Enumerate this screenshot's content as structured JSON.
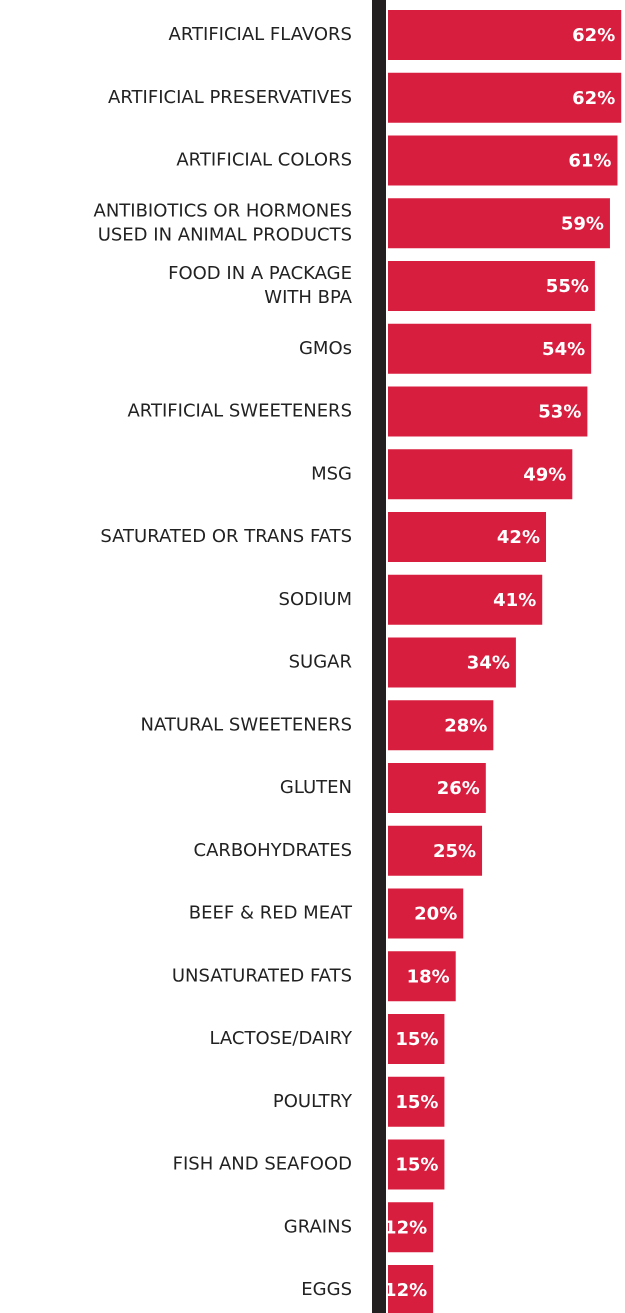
{
  "chart_data": {
    "type": "hbar",
    "categories": [
      [
        "ARTIFICIAL FLAVORS"
      ],
      [
        "ARTIFICIAL PRESERVATIVES"
      ],
      [
        "ARTIFICIAL COLORS"
      ],
      [
        "ANTIBIOTICS OR HORMONES",
        "USED IN ANIMAL PRODUCTS"
      ],
      [
        "FOOD IN A PACKAGE",
        "WITH BPA"
      ],
      [
        "GMOs"
      ],
      [
        "ARTIFICIAL SWEETENERS"
      ],
      [
        "MSG"
      ],
      [
        "SATURATED OR TRANS FATS"
      ],
      [
        "SODIUM"
      ],
      [
        "SUGAR"
      ],
      [
        "NATURAL SWEETENERS"
      ],
      [
        "GLUTEN"
      ],
      [
        "CARBOHYDRATES"
      ],
      [
        "BEEF & RED MEAT"
      ],
      [
        "UNSATURATED FATS"
      ],
      [
        "LACTOSE/DAIRY"
      ],
      [
        "POULTRY"
      ],
      [
        "FISH AND SEAFOOD"
      ],
      [
        "GRAINS"
      ],
      [
        "EGGS"
      ]
    ],
    "values": [
      62,
      62,
      61,
      59,
      55,
      54,
      53,
      49,
      42,
      41,
      34,
      28,
      26,
      25,
      20,
      18,
      15,
      15,
      15,
      12,
      12
    ],
    "value_labels": [
      "62%",
      "62%",
      "61%",
      "59%",
      "55%",
      "54%",
      "53%",
      "49%",
      "42%",
      "41%",
      "34%",
      "28%",
      "26%",
      "25%",
      "20%",
      "18%",
      "15%",
      "15%",
      "15%",
      "12%",
      "12%"
    ],
    "color": "#d81e3f",
    "xlim": [
      0,
      63
    ]
  }
}
